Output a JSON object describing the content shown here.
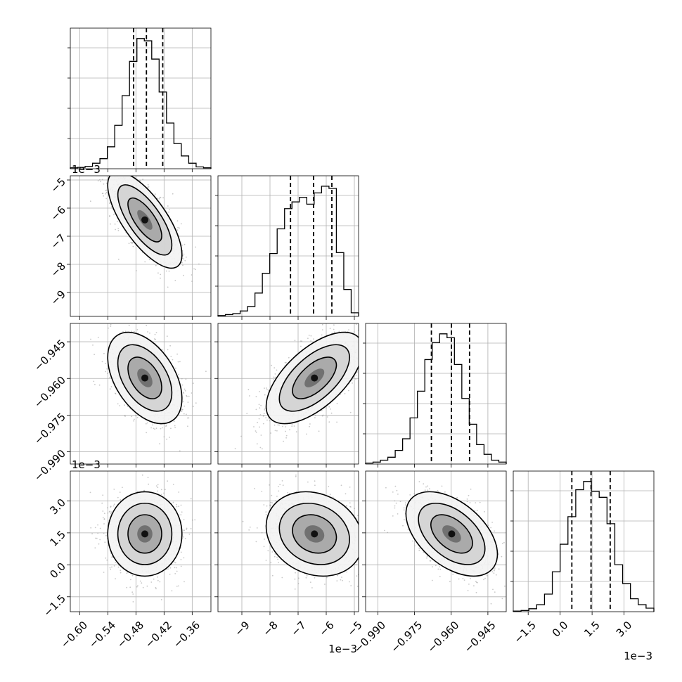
{
  "chart_data": {
    "type": "corner",
    "grid": true,
    "parameters": [
      {
        "id": "p1",
        "range": [
          -0.62,
          -0.32
        ],
        "ticks": [
          -0.6,
          -0.54,
          -0.48,
          -0.42,
          -0.36
        ],
        "tick_labels": [
          "−0.60",
          "−0.54",
          "−0.48",
          "−0.42",
          "−0.36"
        ],
        "offset_label": "",
        "quantiles": [
          -0.4849,
          -0.4576,
          -0.4228
        ],
        "histogram": [
          2,
          3,
          5,
          12,
          22,
          48,
          95,
          160,
          235,
          285,
          280,
          240,
          168,
          100,
          55,
          28,
          12,
          4,
          2
        ]
      },
      {
        "id": "p2",
        "range": [
          -9.85,
          -4.85
        ],
        "ticks": [
          -9,
          -8,
          -7,
          -6,
          -5
        ],
        "tick_labels": [
          "−9",
          "−8",
          "−7",
          "−6",
          "−5"
        ],
        "offset_label": "1e−3",
        "quantiles": [
          -7.27,
          -6.45,
          -5.8
        ],
        "histogram": [
          2,
          4,
          6,
          12,
          22,
          52,
          96,
          140,
          195,
          240,
          255,
          265,
          250,
          275,
          290,
          285,
          142,
          60,
          8
        ]
      },
      {
        "id": "p3",
        "range": [
          -0.995,
          -0.9375
        ],
        "ticks": [
          -0.99,
          -0.975,
          -0.96,
          -0.945
        ],
        "tick_labels": [
          "−0.990",
          "−0.975",
          "−0.960",
          "−0.945"
        ],
        "offset_label": "",
        "quantiles": [
          -0.9681,
          -0.9599,
          -0.9525
        ],
        "histogram": [
          2,
          4,
          8,
          14,
          28,
          52,
          95,
          150,
          215,
          250,
          268,
          260,
          205,
          135,
          82,
          40,
          20,
          8,
          4
        ]
      },
      {
        "id": "p4",
        "range": [
          -2.2,
          4.4
        ],
        "ticks": [
          -1.5,
          0.0,
          1.5,
          3.0
        ],
        "tick_labels": [
          "−1.5",
          "0.0",
          "1.5",
          "3.0"
        ],
        "offset_label": "1e−3",
        "quantiles": [
          0.55,
          1.45,
          2.35
        ],
        "histogram": [
          1,
          2,
          5,
          12,
          30,
          68,
          115,
          162,
          208,
          222,
          205,
          195,
          150,
          80,
          48,
          22,
          12,
          6
        ]
      }
    ],
    "scatter_panels": [
      {
        "x": "p1",
        "y": "p2",
        "x_center": -0.461,
        "y_center": -6.42,
        "x_sd": 0.036,
        "y_sd": 0.78,
        "corr": -0.72
      },
      {
        "x": "p1",
        "y": "p3",
        "x_center": -0.461,
        "y_center": -0.9598,
        "x_sd": 0.036,
        "y_sd": 0.0085,
        "corr": -0.45
      },
      {
        "x": "p2",
        "y": "p3",
        "x_center": -6.42,
        "y_center": -0.9598,
        "x_sd": 0.78,
        "y_sd": 0.0085,
        "corr": 0.62
      },
      {
        "x": "p1",
        "y": "p4",
        "x_center": -0.461,
        "y_center": 1.45,
        "x_sd": 0.036,
        "y_sd": 0.9,
        "corr": 0.0
      },
      {
        "x": "p2",
        "y": "p4",
        "x_center": -6.42,
        "y_center": 1.45,
        "x_sd": 0.78,
        "y_sd": 0.9,
        "corr": -0.18
      },
      {
        "x": "p3",
        "y": "p4",
        "x_center": -0.9598,
        "y_center": 1.45,
        "x_sd": 0.0085,
        "y_sd": 0.9,
        "corr": -0.48
      }
    ]
  }
}
